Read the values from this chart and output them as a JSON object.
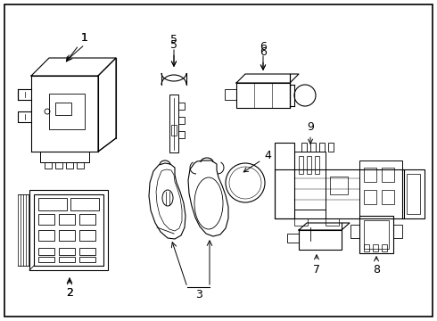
{
  "background_color": "#ffffff",
  "line_color": "#000000",
  "text_color": "#000000",
  "fig_width": 4.9,
  "fig_height": 3.6,
  "dpi": 100
}
